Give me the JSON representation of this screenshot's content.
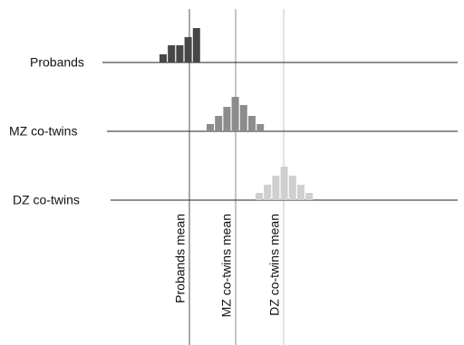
{
  "chart_data": {
    "type": "distribution-diagram",
    "rows": [
      {
        "label": "Probands",
        "color": "#474747",
        "values": [
          9,
          19,
          19,
          28,
          38
        ]
      },
      {
        "label": "MZ co-twins",
        "color": "#8c8c8c",
        "values": [
          8,
          17,
          27,
          38,
          29,
          17,
          8
        ]
      },
      {
        "label": "DZ co-twins",
        "color": "#cfcfcf",
        "values": [
          8,
          17,
          27,
          37,
          27,
          17,
          8
        ]
      }
    ],
    "means": [
      {
        "label": "Probands mean",
        "color": "#555555"
      },
      {
        "label": "MZ co-twins mean",
        "color": "#8c8c8c"
      },
      {
        "label": "DZ co-twins mean",
        "color": "#c4c4c4"
      }
    ]
  }
}
